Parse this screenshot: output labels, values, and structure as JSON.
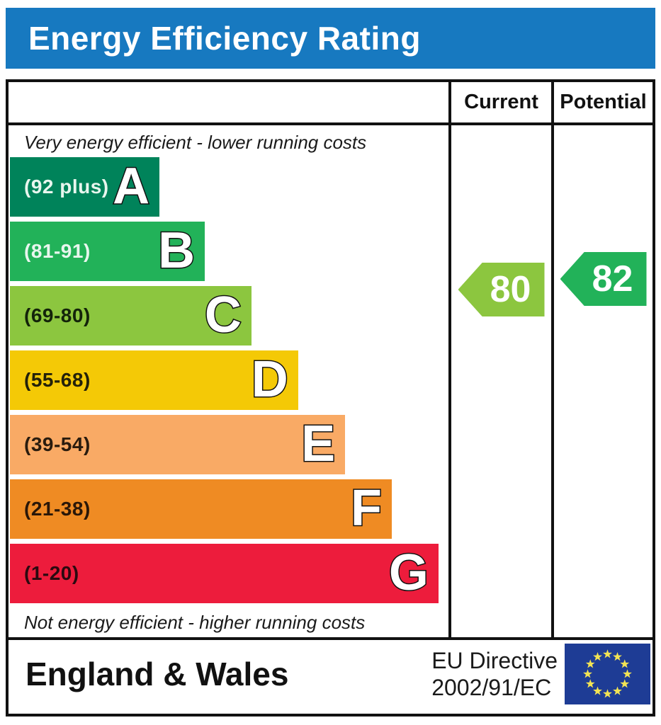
{
  "title_bar": {
    "label": "Energy Efficiency Rating",
    "bg_color": "#1779c0",
    "text_color": "#ffffff"
  },
  "table": {
    "columns": {
      "current": "Current",
      "potential": "Potential"
    },
    "top_note": "Very energy efficient - lower running costs",
    "bottom_note": "Not energy efficient - higher running costs"
  },
  "footer": {
    "region": "England & Wales",
    "directive_line1": "EU Directive",
    "directive_line2": "2002/91/EC",
    "eu_flag": {
      "bg": "#1e3c95",
      "star_color": "#f2e354",
      "stars": 12
    }
  },
  "chart_data": {
    "type": "bar",
    "title": "Energy Efficiency Rating",
    "xlabel": "",
    "ylabel": "",
    "legend": [
      "Current",
      "Potential"
    ],
    "bands": [
      {
        "letter": "A",
        "range": "(92 plus)",
        "min": 92,
        "max": 100,
        "color": "#00835a",
        "label_color": "#e8f6ee",
        "width_pct": 34.0
      },
      {
        "letter": "B",
        "range": "(81-91)",
        "min": 81,
        "max": 91,
        "color": "#22b259",
        "label_color": "#e8f6ee",
        "width_pct": 44.3
      },
      {
        "letter": "C",
        "range": "(69-80)",
        "min": 69,
        "max": 80,
        "color": "#8cc63f",
        "label_color": "#13230a",
        "width_pct": 54.9
      },
      {
        "letter": "D",
        "range": "(55-68)",
        "min": 55,
        "max": 68,
        "color": "#f4c906",
        "label_color": "#23210a",
        "width_pct": 65.5
      },
      {
        "letter": "E",
        "range": "(39-54)",
        "min": 39,
        "max": 54,
        "color": "#f9aa65",
        "label_color": "#2a1c0e",
        "width_pct": 76.2
      },
      {
        "letter": "F",
        "range": "(21-38)",
        "min": 21,
        "max": 38,
        "color": "#ef8b23",
        "label_color": "#2a1708",
        "width_pct": 86.8
      },
      {
        "letter": "G",
        "range": "(1-20)",
        "min": 1,
        "max": 20,
        "color": "#ed1c3c",
        "label_color": "#2b0a10",
        "width_pct": 97.4
      }
    ],
    "current": {
      "value": 80,
      "band": "C",
      "color": "#8cc63f"
    },
    "potential": {
      "value": 82,
      "band": "B",
      "color": "#22b259"
    }
  }
}
